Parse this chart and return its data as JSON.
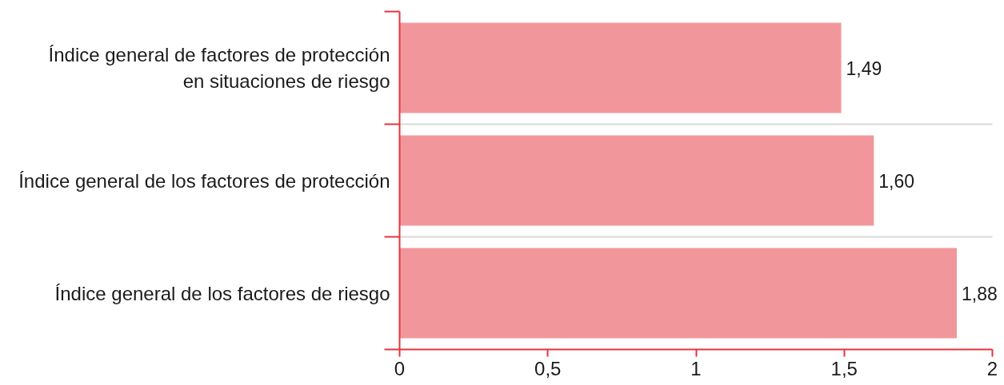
{
  "chart_data": {
    "type": "bar",
    "orientation": "horizontal",
    "categories": [
      "Índice general de factores de protección\nen situaciones de riesgo",
      "Índice general de los factores de protección",
      "Índice general de los factores de riesgo"
    ],
    "values": [
      1.49,
      1.6,
      1.88
    ],
    "color": "#f1979b",
    "value_labels": [
      "1,49",
      "1,60",
      "1,88"
    ],
    "xlim": [
      0,
      2
    ],
    "xticks": [
      0,
      {
        "value": 0.5,
        "label": "0,5"
      },
      1,
      {
        "value": 1.5,
        "label": "1,5"
      },
      2
    ],
    "grid": "y"
  }
}
